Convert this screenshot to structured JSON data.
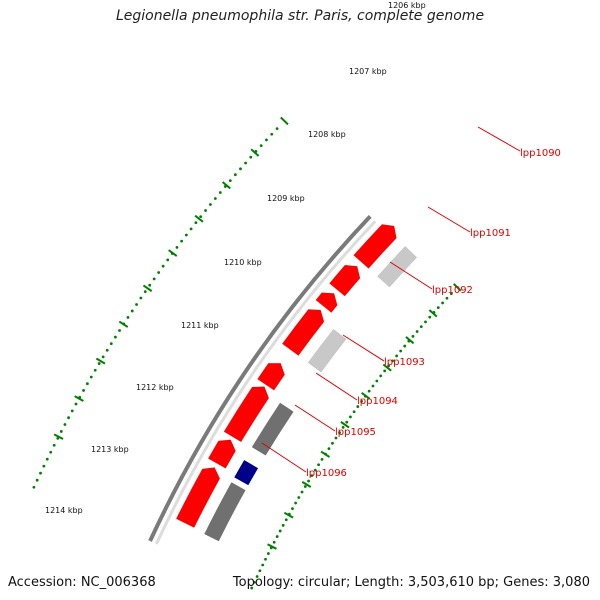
{
  "title": "Legionella pneumophila str. Paris, complete genome",
  "footer": {
    "accession": "Accession: NC_006368",
    "topology": "Topology: circular; Length: 3,503,610 bp; Genes: 3,080"
  },
  "ticks": [
    "1206 kbp",
    "1207 kbp",
    "1208 kbp",
    "1209 kbp",
    "1210 kbp",
    "1211 kbp",
    "1212 kbp",
    "1213 kbp",
    "1214 kbp"
  ],
  "gene_labels": [
    "lpp1090",
    "lpp1091",
    "lpp1092",
    "lpp1093",
    "lpp1094",
    "lpp1095",
    "lpp1096"
  ],
  "colors": {
    "cds_forward": "#ff0000",
    "cog_dark": "#707070",
    "cog_light": "#c8c8c8",
    "cog_blue": "#00008b",
    "backbone": "#808080",
    "ruler": "#008000",
    "label": "#e00000"
  }
}
